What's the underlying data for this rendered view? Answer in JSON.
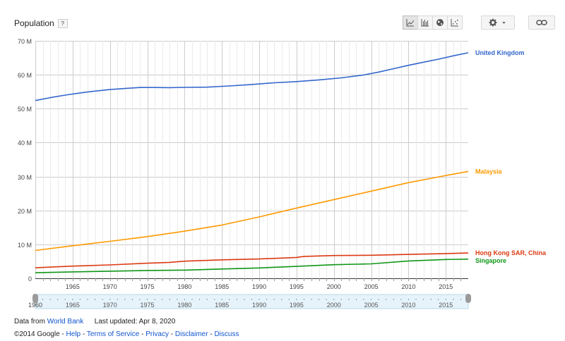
{
  "title": "Population",
  "help_label": "?",
  "toolbar": {
    "views": [
      "line-chart-icon",
      "bar-chart-icon",
      "map-globe-icon",
      "scatter-chart-icon"
    ],
    "settings_icon": "gear-icon",
    "link_icon": "link-icon"
  },
  "chart_data": {
    "type": "line",
    "ylim": [
      0,
      70000000
    ],
    "yticks": [
      0,
      10000000,
      20000000,
      30000000,
      40000000,
      50000000,
      60000000,
      70000000
    ],
    "yticklabels": [
      "0",
      "10 M",
      "20 M",
      "30 M",
      "40 M",
      "50 M",
      "60 M",
      "70 M"
    ],
    "xlim": [
      1960,
      2018
    ],
    "xticks": [
      1965,
      1970,
      1975,
      1980,
      1985,
      1990,
      1995,
      2000,
      2005,
      2010,
      2015
    ],
    "xticklabels": [
      "1965",
      "1970",
      "1975",
      "1980",
      "1985",
      "1990",
      "1995",
      "2000",
      "2005",
      "2010",
      "2015"
    ],
    "grid": true,
    "legend": "right-end labels",
    "series": [
      {
        "name": "United Kingdom",
        "color": "#3366cc",
        "x": [
          1960,
          1962,
          1964,
          1966,
          1968,
          1970,
          1972,
          1974,
          1976,
          1978,
          1980,
          1983,
          1986,
          1989,
          1992,
          1995,
          1998,
          2001,
          2004,
          2006,
          2008,
          2010,
          2012,
          2014,
          2016,
          2018
        ],
        "y": [
          52400000,
          53250000,
          54000000,
          54650000,
          55200000,
          55650000,
          55950000,
          56250000,
          56250000,
          56200000,
          56300000,
          56350000,
          56700000,
          57150000,
          57650000,
          58000000,
          58500000,
          59100000,
          59950000,
          60800000,
          61800000,
          62800000,
          63700000,
          64600000,
          65600000,
          66500000
        ]
      },
      {
        "name": "Malaysia",
        "color": "#ff9900",
        "x": [
          1960,
          1965,
          1970,
          1975,
          1980,
          1985,
          1990,
          1995,
          2000,
          2005,
          2010,
          2015,
          2018
        ],
        "y": [
          8200000,
          9600000,
          10900000,
          12300000,
          13900000,
          15700000,
          18100000,
          20700000,
          23200000,
          25700000,
          28200000,
          30300000,
          31500000
        ]
      },
      {
        "name": "Hong Kong SAR, China",
        "color": "#dc3912",
        "x": [
          1960,
          1965,
          1970,
          1975,
          1978,
          1980,
          1985,
          1990,
          1995,
          1996,
          2000,
          2005,
          2010,
          2015,
          2018
        ],
        "y": [
          3100000,
          3600000,
          3950000,
          4450000,
          4700000,
          5050000,
          5450000,
          5700000,
          6150000,
          6450000,
          6700000,
          6800000,
          7050000,
          7300000,
          7450000
        ]
      },
      {
        "name": "Singapore",
        "color": "#109618",
        "x": [
          1960,
          1965,
          1970,
          1975,
          1980,
          1985,
          1990,
          1995,
          2000,
          2005,
          2010,
          2015,
          2018
        ],
        "y": [
          1650000,
          1900000,
          2100000,
          2300000,
          2400000,
          2750000,
          3050000,
          3500000,
          4000000,
          4250000,
          5100000,
          5550000,
          5650000
        ]
      }
    ]
  },
  "range_slider": {
    "start_label": "1960",
    "ticklabels": [
      "1965",
      "1970",
      "1975",
      "1980",
      "1985",
      "1990",
      "1995",
      "2000",
      "2005",
      "2010",
      "2015"
    ]
  },
  "footer": {
    "data_from": "Data from",
    "source_link": "World Bank",
    "last_updated": "Last updated: Apr 8, 2020",
    "copyright": "©2014 Google",
    "links": [
      "Help",
      "Terms of Service",
      "Privacy",
      "Disclaimer",
      "Discuss"
    ]
  }
}
